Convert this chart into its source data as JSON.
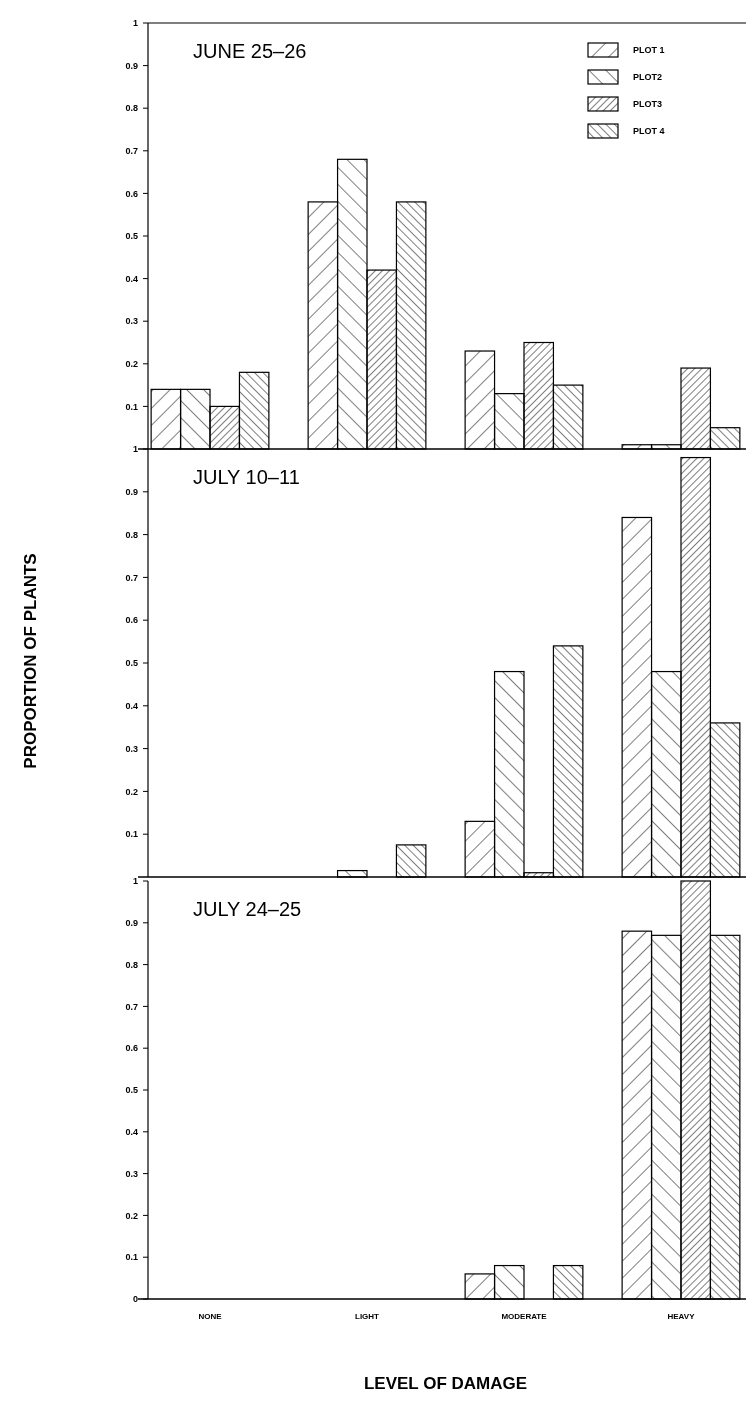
{
  "chart_data": [
    {
      "type": "bar",
      "title": "JUNE 25–26",
      "categories": [
        null,
        null,
        null,
        null
      ],
      "series": [
        {
          "name": "PLOT 1",
          "color": "#000000",
          "values": [
            0.14,
            0.58,
            0.23,
            0.01
          ]
        },
        {
          "name": "PLOT2",
          "color": "#000000",
          "values": [
            0.14,
            0.68,
            0.13,
            0.01
          ]
        },
        {
          "name": "PLOT3",
          "color": "#000000",
          "values": [
            0.1,
            0.42,
            0.25,
            0.19
          ]
        },
        {
          "name": "PLOT 4",
          "color": "#000000",
          "values": [
            0.18,
            0.58,
            0.15,
            0.05
          ]
        }
      ],
      "ylim": [
        0,
        1
      ],
      "yticks": [
        0.1,
        0.2,
        0.3,
        0.4,
        0.5,
        0.6,
        0.7,
        0.8,
        0.9,
        1
      ],
      "legend": "top right",
      "tick_labels": "y"
    },
    {
      "type": "bar",
      "title": "JULY 10–11",
      "ylabel": "PROPORTION OF PLANTS",
      "categories": [
        null,
        null,
        null,
        null
      ],
      "series": [
        {
          "color": "#000000",
          "values": [
            0,
            0,
            0.13,
            0.84
          ]
        },
        {
          "color": "#000000",
          "values": [
            0,
            0.015,
            0.48,
            0.48
          ]
        },
        {
          "color": "#000000",
          "values": [
            0,
            0,
            0.01,
            0.98
          ]
        },
        {
          "color": "#000000",
          "values": [
            0,
            0.075,
            0.54,
            0.36
          ]
        }
      ],
      "ylim": [
        0,
        1
      ],
      "yticks": [
        0.1,
        0.2,
        0.3,
        0.4,
        0.5,
        0.6,
        0.7,
        0.8,
        0.9,
        1
      ],
      "tick_labels": "y"
    },
    {
      "type": "bar",
      "title": "JULY 24–25",
      "xlabel": "LEVEL OF DAMAGE",
      "categories": [
        "NONE",
        "LIGHT",
        "MODERATE",
        "HEAVY"
      ],
      "series": [
        {
          "color": "#000000",
          "values": [
            0,
            0,
            0.06,
            0.88
          ]
        },
        {
          "color": "#000000",
          "values": [
            0,
            0,
            0.08,
            0.87
          ]
        },
        {
          "color": "#000000",
          "values": [
            0,
            0,
            0,
            1
          ]
        },
        {
          "color": "#000000",
          "values": [
            0,
            0,
            0.08,
            0.87
          ]
        }
      ],
      "ylim": [
        0,
        1
      ],
      "yticks": [
        0,
        0.1,
        0.2,
        0.3,
        0.4,
        0.5,
        0.6,
        0.7,
        0.8,
        0.9,
        1
      ]
    }
  ]
}
